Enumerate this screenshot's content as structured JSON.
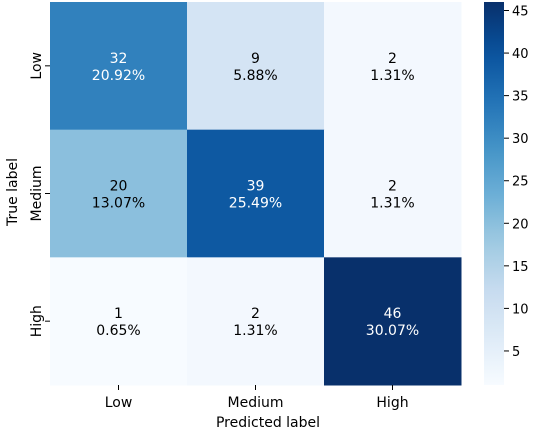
{
  "chart_data": {
    "type": "heatmap",
    "title": "",
    "xlabel": "Predicted label",
    "ylabel": "True label",
    "x_categories": [
      "Low",
      "Medium",
      "High"
    ],
    "y_categories": [
      "Low",
      "Medium",
      "High"
    ],
    "values": [
      [
        32,
        9,
        2
      ],
      [
        20,
        39,
        2
      ],
      [
        1,
        2,
        46
      ]
    ],
    "percent_labels": [
      [
        "20.92%",
        "5.88%",
        "1.31%"
      ],
      [
        "13.07%",
        "25.49%",
        "1.31%"
      ],
      [
        "0.65%",
        "1.31%",
        "30.07%"
      ]
    ],
    "colorbar": {
      "min": 1,
      "max": 46,
      "ticks": [
        5,
        10,
        15,
        20,
        25,
        30,
        35,
        40,
        45
      ]
    },
    "colormap": "Blues",
    "grid": false
  }
}
